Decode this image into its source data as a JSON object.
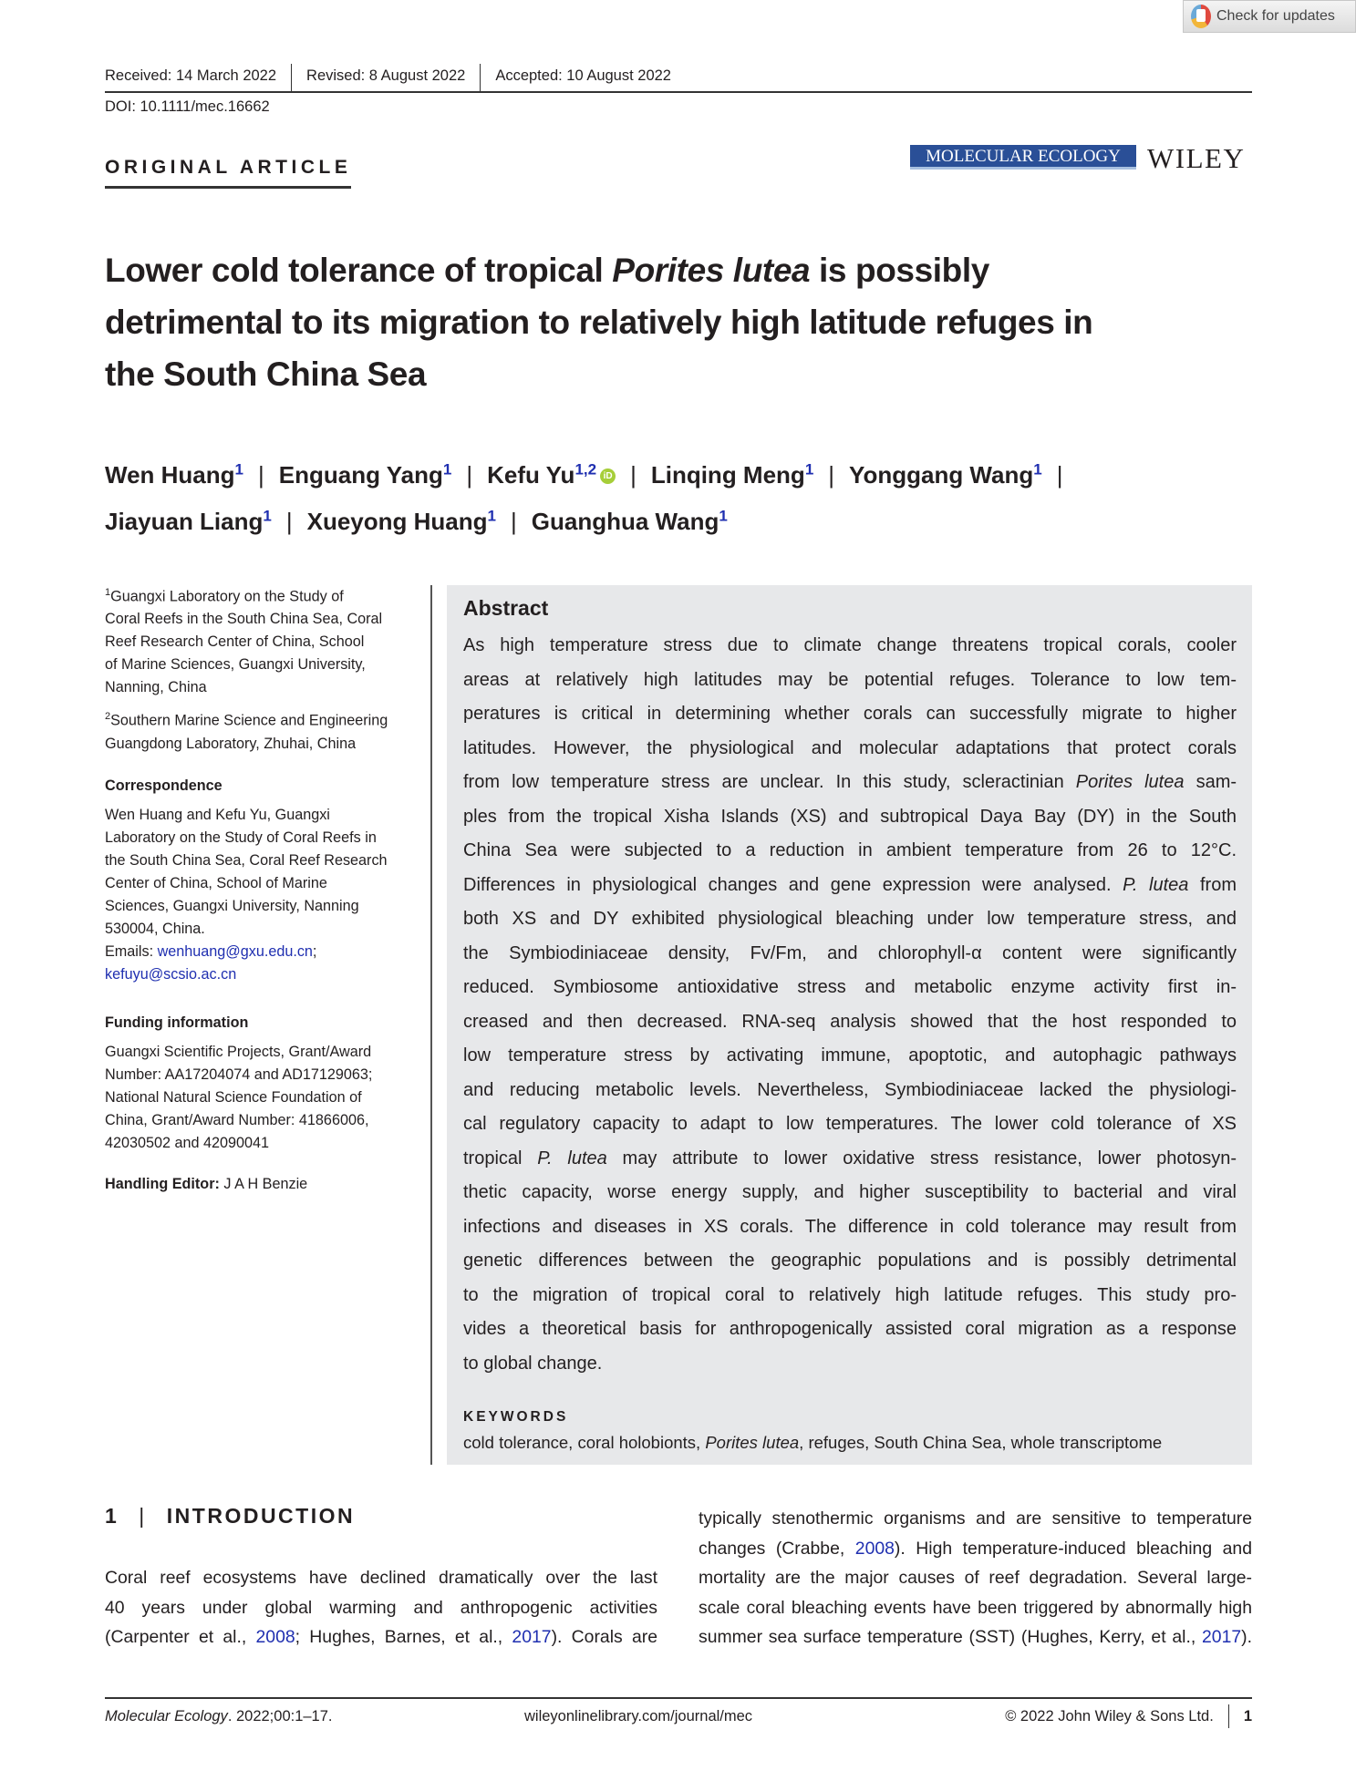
{
  "badge": {
    "label": "Check for updates",
    "icon": "check-for-updates-icon"
  },
  "header": {
    "received": "Received: 14 March 2022",
    "revised": "Revised: 8 August 2022",
    "accepted": "Accepted: 10 August 2022",
    "doi": "DOI: 10.1111/mec.16662",
    "article_type": "ORIGINAL ARTICLE",
    "journal_logo": "MOLECULAR ECOLOGY",
    "publisher_logo": "WILEY",
    "journal_color": "#2a4f97"
  },
  "title": {
    "lines": [
      [
        "Lower cold tolerance of tropical ",
        {
          "i": "Porites lutea"
        },
        " is possibly"
      ],
      [
        "detrimental to its migration to relatively high latitude refuges in"
      ],
      [
        "the South China Sea"
      ]
    ]
  },
  "authors": [
    {
      "name": "Wen Huang",
      "aff": "1"
    },
    {
      "name": "Enguang Yang",
      "aff": "1"
    },
    {
      "name": "Kefu Yu",
      "aff": "1,2",
      "orcid": "iD"
    },
    {
      "name": "Linqing Meng",
      "aff": "1"
    },
    {
      "name": "Yonggang Wang",
      "aff": "1"
    },
    {
      "name": "Jiayuan Liang",
      "aff": "1"
    },
    {
      "name": "Xueyong Huang",
      "aff": "1"
    },
    {
      "name": "Guanghua Wang",
      "aff": "1"
    }
  ],
  "sidebar": {
    "affiliations": [
      {
        "num": "1",
        "lines": [
          "Guangxi Laboratory on the Study of",
          "Coral Reefs in the South China Sea, Coral",
          "Reef Research Center of China, School",
          "of Marine Sciences, Guangxi University,",
          "Nanning, China"
        ]
      },
      {
        "num": "2",
        "lines": [
          "Southern Marine Science and Engineering",
          "Guangdong Laboratory, Zhuhai, China"
        ]
      }
    ],
    "correspondence_heading": "Correspondence",
    "correspondence_lines": [
      "Wen Huang and Kefu Yu, Guangxi",
      "Laboratory on the Study of Coral Reefs in",
      "the South China Sea, Coral Reef Research",
      "Center of China, School of Marine",
      "Sciences, Guangxi University, Nanning",
      "530004, China."
    ],
    "emails_label": "Emails: ",
    "email1": "wenhuang@gxu.edu.cn",
    "email_sep": ";",
    "email2": "kefuyu@scsio.ac.cn",
    "funding_heading": "Funding information",
    "funding_lines": [
      "Guangxi Scientific Projects, Grant/Award",
      "Number: AA17204074 and AD17129063;",
      "National Natural Science Foundation of",
      "China, Grant/Award Number: 41866006,",
      "42030502 and 42090041"
    ],
    "editor_label": "Handling Editor:",
    "editor_name": " J A H Benzie"
  },
  "abstract": {
    "heading": "Abstract",
    "lines": [
      [
        "As high temperature stress due to climate change threatens tropical corals, cooler"
      ],
      [
        "areas at relatively high latitudes may be potential refuges. Tolerance to low tem-"
      ],
      [
        "peratures is critical in determining whether corals can successfully migrate to higher"
      ],
      [
        "latitudes. However, the physiological and molecular adaptations that protect corals"
      ],
      [
        "from low temperature stress are unclear. In this study, scleractinian ",
        {
          "i": "Porites lutea"
        },
        " sam-"
      ],
      [
        "ples from the tropical Xisha Islands (XS) and subtropical Daya Bay (DY) in the South"
      ],
      [
        "China Sea were subjected to a reduction in ambient temperature from 26 to 12°C."
      ],
      [
        "Differences in physiological changes and gene expression were analysed. ",
        {
          "i": "P. lutea"
        },
        " from"
      ],
      [
        "both XS and DY exhibited physiological bleaching under low temperature stress, and"
      ],
      [
        "the Symbiodiniaceae density, Fv/Fm, and chlorophyll-α content were significantly"
      ],
      [
        "reduced. Symbiosome antioxidative stress and metabolic enzyme activity first in-"
      ],
      [
        "creased and then decreased. RNA-seq analysis showed that the host responded to"
      ],
      [
        "low temperature stress by activating immune, apoptotic, and autophagic pathways"
      ],
      [
        "and reducing metabolic levels. Nevertheless, Symbiodiniaceae lacked the physiologi-"
      ],
      [
        "cal regulatory capacity to adapt to low temperatures. The lower cold tolerance of XS"
      ],
      [
        "tropical ",
        {
          "i": "P. lutea"
        },
        " may attribute to lower oxidative stress resistance, lower photosyn-"
      ],
      [
        "thetic capacity, worse energy supply, and higher susceptibility to bacterial and viral"
      ],
      [
        "infections and diseases in XS corals. The difference in cold tolerance may result from"
      ],
      [
        "genetic differences between the geographic populations and is possibly detrimental"
      ],
      [
        "to the migration of tropical coral to relatively high latitude refuges. This study pro-"
      ],
      [
        "vides a theoretical basis for anthropogenically assisted coral migration as a response"
      ],
      [
        "to global change."
      ]
    ],
    "keywords_heading": "KEYWORDS",
    "keywords": [
      [
        "cold tolerance, coral holobionts, ",
        {
          "i": "Porites lutea"
        },
        ", refuges, South China Sea, whole transcriptome"
      ]
    ]
  },
  "intro": {
    "number": "1",
    "separator": "|",
    "heading": "INTRODUCTION",
    "col1": [
      [
        "Coral reef ecosystems have declined dramatically over the last"
      ],
      [
        "40 years under global warming and anthropogenic activities"
      ],
      [
        "(Carpenter et al., ",
        {
          "a": "2008"
        },
        "; Hughes, Barnes, et al., ",
        {
          "a": "2017"
        },
        "). Corals are"
      ]
    ],
    "col2": [
      [
        "typically stenothermic organisms and are sensitive to temperature"
      ],
      [
        "changes (Crabbe, ",
        {
          "a": "2008"
        },
        "). High temperature-induced bleaching and"
      ],
      [
        "mortality are the major causes of reef degradation. Several large-"
      ],
      [
        "scale coral bleaching events have been triggered by abnormally high"
      ],
      [
        "summer sea surface temperature (SST) (Hughes, Kerry, et al., ",
        {
          "a": "2017"
        },
        ")."
      ]
    ]
  },
  "footer": {
    "citation_journal": "Molecular Ecology",
    "citation_rest": ". 2022;00:1–17.",
    "url": "wileyonlinelibrary.com/journal/mec",
    "copyright": "© 2022 John Wiley & Sons Ltd.",
    "page": "1"
  }
}
